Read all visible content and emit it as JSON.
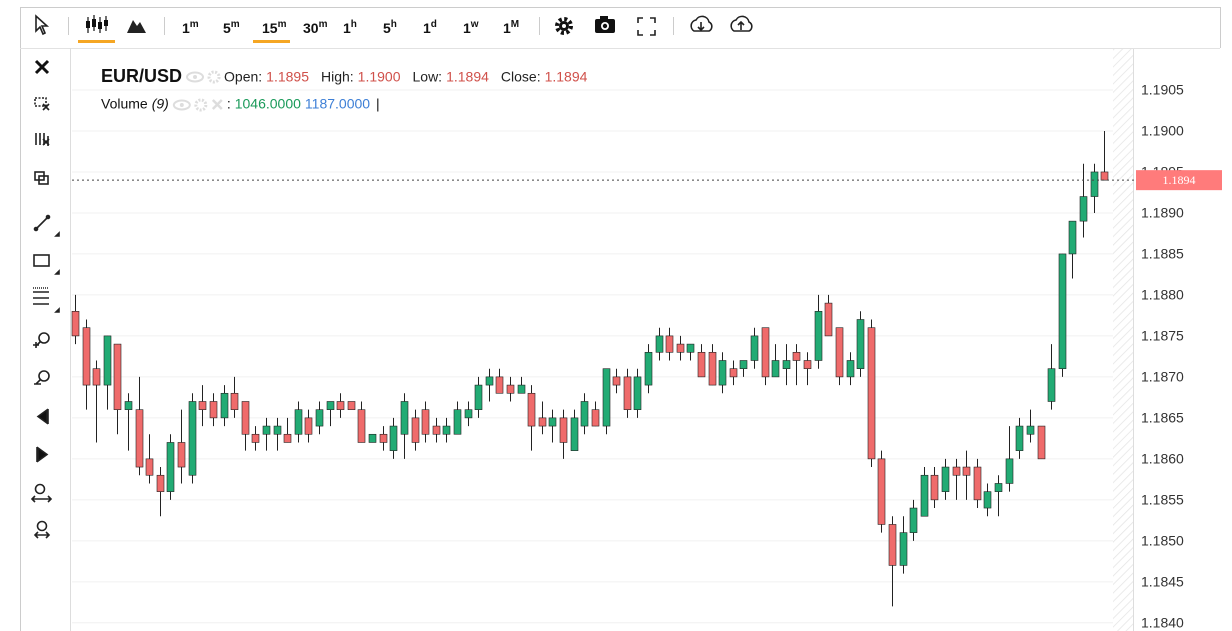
{
  "toolbar": {
    "intervals": [
      {
        "num": "1",
        "unit": "m"
      },
      {
        "num": "5",
        "unit": "m"
      },
      {
        "num": "15",
        "unit": "m"
      },
      {
        "num": "30",
        "unit": "m"
      },
      {
        "num": "1",
        "unit": "h"
      },
      {
        "num": "5",
        "unit": "h"
      },
      {
        "num": "1",
        "unit": "d"
      },
      {
        "num": "1",
        "unit": "w"
      },
      {
        "num": "1",
        "unit": "M"
      }
    ]
  },
  "chart_data": {
    "type": "candlestick",
    "symbol": "EUR/USD",
    "ohlc_labels": [
      {
        "label": "Open:",
        "value": "1.1895"
      },
      {
        "label": "High:",
        "value": "1.1900"
      },
      {
        "label": "Low:",
        "value": "1.1894"
      },
      {
        "label": "Close:",
        "value": "1.1894"
      }
    ],
    "volume": {
      "label": "Volume",
      "params": "(9)",
      "separator": ":",
      "values": [
        "1046.0000",
        "1187.0000"
      ],
      "cursor": "|"
    },
    "open": [
      1.1878,
      1.1876,
      1.1871,
      1.1869,
      1.1874,
      1.1866,
      1.1866,
      1.186,
      1.1858,
      1.1856,
      1.1862,
      1.1858,
      1.1867,
      1.1867,
      1.1865,
      1.1868,
      1.1867,
      1.1863,
      1.1863,
      1.1863,
      1.1863,
      1.1863,
      1.1865,
      1.1864,
      1.1866,
      1.1867,
      1.1867,
      1.1866,
      1.1862,
      1.1863,
      1.1861,
      1.1863,
      1.1865,
      1.1866,
      1.1864,
      1.1863,
      1.1863,
      1.1865,
      1.1866,
      1.1869,
      1.187,
      1.1869,
      1.1868,
      1.1868,
      1.1865,
      1.1864,
      1.1865,
      1.1861,
      1.1864,
      1.1866,
      1.1864,
      1.187,
      1.187,
      1.1866,
      1.1869,
      1.1873,
      1.1875,
      1.1874,
      1.1873,
      1.1873,
      1.1873,
      1.1869,
      1.1871,
      1.1871,
      1.1872,
      1.1876,
      1.187,
      1.1871,
      1.1873,
      1.1872,
      1.1872,
      1.1879,
      1.1876,
      1.187,
      1.1871,
      1.1876,
      1.186,
      1.1852,
      1.1847,
      1.1851,
      1.1853,
      1.1858,
      1.1856,
      1.1859,
      1.1859,
      1.1859,
      1.1854,
      1.1856,
      1.1857,
      1.1861,
      1.1863,
      1.1864,
      1.1867,
      1.1871,
      1.1885,
      1.1889,
      1.1892,
      1.1895
    ],
    "high": [
      1.188,
      1.1877,
      1.1872,
      1.1875,
      1.1874,
      1.1868,
      1.187,
      1.1863,
      1.1859,
      1.1863,
      1.1866,
      1.1868,
      1.1869,
      1.1868,
      1.1869,
      1.187,
      1.1867,
      1.1864,
      1.1865,
      1.1865,
      1.1865,
      1.1867,
      1.1866,
      1.1867,
      1.1867,
      1.1868,
      1.1867,
      1.1867,
      1.1863,
      1.1864,
      1.1865,
      1.1868,
      1.1866,
      1.1867,
      1.1865,
      1.1865,
      1.1867,
      1.1867,
      1.187,
      1.1871,
      1.1871,
      1.187,
      1.187,
      1.1869,
      1.1867,
      1.1866,
      1.1866,
      1.1866,
      1.1868,
      1.1867,
      1.1871,
      1.1871,
      1.1871,
      1.1871,
      1.1874,
      1.1876,
      1.1876,
      1.1875,
      1.1874,
      1.1874,
      1.1874,
      1.1873,
      1.1872,
      1.1872,
      1.1876,
      1.1876,
      1.1874,
      1.1874,
      1.1874,
      1.1873,
      1.188,
      1.188,
      1.1876,
      1.1873,
      1.1878,
      1.1877,
      1.1861,
      1.1853,
      1.1853,
      1.1855,
      1.1859,
      1.1859,
      1.186,
      1.186,
      1.1861,
      1.186,
      1.1857,
      1.1858,
      1.1864,
      1.1865,
      1.1866,
      1.1864,
      1.1874,
      1.1885,
      1.1889,
      1.1896,
      1.1896,
      1.19
    ],
    "low": [
      1.1874,
      1.1866,
      1.1862,
      1.1866,
      1.1863,
      1.1861,
      1.1858,
      1.1857,
      1.1853,
      1.1855,
      1.1857,
      1.1857,
      1.1864,
      1.1864,
      1.1864,
      1.1865,
      1.1861,
      1.1861,
      1.1861,
      1.1861,
      1.1862,
      1.1862,
      1.1862,
      1.1863,
      1.1864,
      1.1865,
      1.1866,
      1.1862,
      1.1862,
      1.1861,
      1.186,
      1.186,
      1.1861,
      1.1862,
      1.1862,
      1.1862,
      1.1863,
      1.1864,
      1.1865,
      1.1867,
      1.1868,
      1.1867,
      1.1868,
      1.1861,
      1.1863,
      1.1862,
      1.186,
      1.1861,
      1.1863,
      1.1864,
      1.1863,
      1.1868,
      1.1865,
      1.1865,
      1.1868,
      1.1872,
      1.1872,
      1.1872,
      1.1872,
      1.187,
      1.1869,
      1.1868,
      1.1869,
      1.187,
      1.1871,
      1.1869,
      1.187,
      1.1869,
      1.1869,
      1.1869,
      1.1871,
      1.1875,
      1.1869,
      1.1869,
      1.187,
      1.1859,
      1.1851,
      1.1842,
      1.1846,
      1.185,
      1.1853,
      1.1854,
      1.1855,
      1.1855,
      1.1855,
      1.1854,
      1.1853,
      1.1853,
      1.1856,
      1.186,
      1.1862,
      1.186,
      1.1866,
      1.187,
      1.1882,
      1.1887,
      1.189,
      1.1894
    ],
    "close": [
      1.1875,
      1.1869,
      1.1869,
      1.1875,
      1.1866,
      1.1867,
      1.1859,
      1.1858,
      1.1856,
      1.1862,
      1.1859,
      1.1867,
      1.1866,
      1.1865,
      1.1868,
      1.1866,
      1.1863,
      1.1862,
      1.1864,
      1.1864,
      1.1862,
      1.1866,
      1.1863,
      1.1866,
      1.1867,
      1.1866,
      1.1866,
      1.1862,
      1.1863,
      1.1862,
      1.1864,
      1.1867,
      1.1862,
      1.1863,
      1.1863,
      1.1864,
      1.1866,
      1.1866,
      1.1869,
      1.187,
      1.1868,
      1.1868,
      1.1869,
      1.1864,
      1.1864,
      1.1865,
      1.1862,
      1.1865,
      1.1867,
      1.1864,
      1.1871,
      1.1869,
      1.1866,
      1.187,
      1.1873,
      1.1875,
      1.1873,
      1.1873,
      1.1874,
      1.187,
      1.1869,
      1.1872,
      1.187,
      1.1872,
      1.1875,
      1.187,
      1.1872,
      1.1872,
      1.1872,
      1.1871,
      1.1878,
      1.1875,
      1.187,
      1.1872,
      1.1877,
      1.186,
      1.1852,
      1.1847,
      1.1851,
      1.1854,
      1.1858,
      1.1855,
      1.1859,
      1.1858,
      1.1858,
      1.1855,
      1.1856,
      1.1857,
      1.186,
      1.1864,
      1.1864,
      1.186,
      1.1871,
      1.1885,
      1.1889,
      1.1892,
      1.1895,
      1.1894
    ],
    "up_color": "#22ab74",
    "down_color": "#ef6b6b",
    "ylim": [
      1.1839,
      1.191
    ],
    "yticks": [
      {
        "value": 1.184,
        "label": "1.1840"
      },
      1.1845,
      {
        "value": 1.185,
        "label": "1.1850"
      },
      1.1855,
      {
        "value": 1.186,
        "label": "1.1860"
      },
      1.1865,
      {
        "value": 1.187,
        "label": "1.1870"
      },
      1.1875,
      {
        "value": 1.188,
        "label": "1.1880"
      },
      1.1885,
      {
        "value": 1.189,
        "label": "1.1890"
      },
      1.1895,
      {
        "value": 1.19,
        "label": "1.1900"
      },
      1.1905
    ],
    "last_price": 1.1894,
    "grid": true
  }
}
